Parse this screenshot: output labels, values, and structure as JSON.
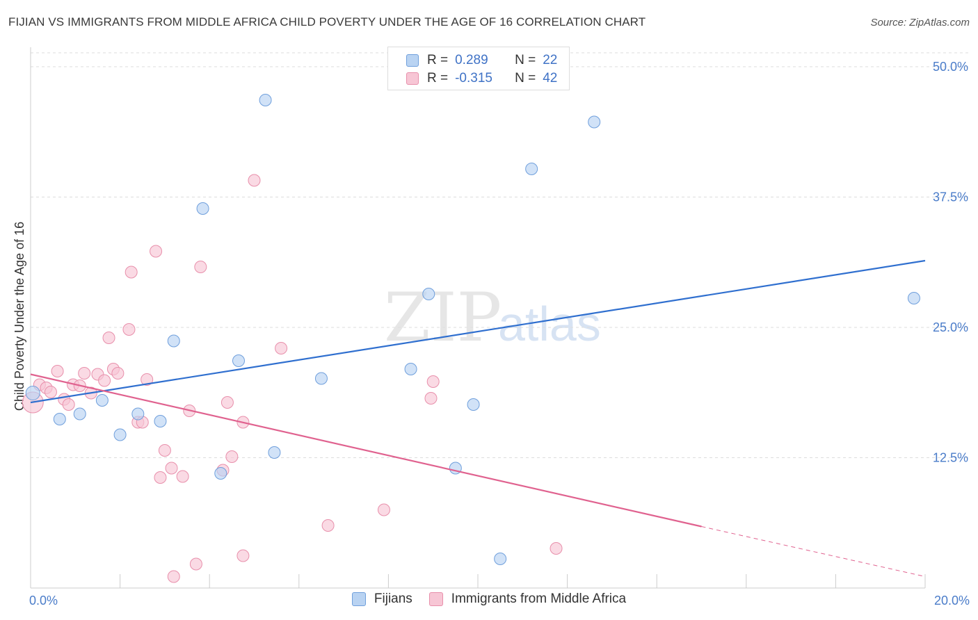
{
  "title": "FIJIAN VS IMMIGRANTS FROM MIDDLE AFRICA CHILD POVERTY UNDER THE AGE OF 16 CORRELATION CHART",
  "source": "Source: ZipAtlas.com",
  "watermark": {
    "zip": "ZIP",
    "atlas": "atlas"
  },
  "colors": {
    "fijians_fill": "#b9d3f2",
    "fijians_stroke": "#6f9fdc",
    "fijians_line": "#2f6fcf",
    "immigrants_fill": "#f7c6d5",
    "immigrants_stroke": "#e88fab",
    "immigrants_line": "#e0628f",
    "axis_text": "#4a7cc9",
    "grid": "#dddddd"
  },
  "legend": {
    "rows": [
      {
        "r_label": "R =",
        "r_value": "0.289",
        "n_label": "N =",
        "n_value": "22"
      },
      {
        "r_label": "R =",
        "r_value": "-0.315",
        "n_label": "N =",
        "n_value": "42"
      }
    ]
  },
  "bottom_legend": {
    "fijians": "Fijians",
    "immigrants": "Immigrants from Middle Africa"
  },
  "chart_data": {
    "type": "scatter",
    "title": "FIJIAN VS IMMIGRANTS FROM MIDDLE AFRICA CHILD POVERTY UNDER THE AGE OF 16 CORRELATION CHART",
    "xlabel": "",
    "ylabel": "Child Poverty Under the Age of 16",
    "xlim": [
      0,
      20
    ],
    "ylim": [
      0,
      52
    ],
    "x_tick_labels": [
      "0.0%",
      "20.0%"
    ],
    "x_tick_values": [
      0,
      20
    ],
    "y_ticks": [
      {
        "value": 12.5,
        "label": "12.5%"
      },
      {
        "value": 25.0,
        "label": "25.0%"
      },
      {
        "value": 37.5,
        "label": "37.5%"
      },
      {
        "value": 50.0,
        "label": "50.0%"
      }
    ],
    "grid": true,
    "series": [
      {
        "name": "Fijians",
        "R": 0.289,
        "N": 22,
        "points": [
          [
            0.05,
            18.7
          ],
          [
            0.65,
            16.2
          ],
          [
            1.1,
            16.7
          ],
          [
            1.6,
            18.0
          ],
          [
            2.0,
            14.7
          ],
          [
            2.4,
            16.7
          ],
          [
            2.9,
            16.0
          ],
          [
            3.2,
            23.7
          ],
          [
            3.85,
            36.4
          ],
          [
            4.25,
            11.0
          ],
          [
            4.65,
            21.8
          ],
          [
            5.25,
            46.8
          ],
          [
            5.45,
            13.0
          ],
          [
            6.5,
            20.1
          ],
          [
            8.5,
            21.0
          ],
          [
            8.9,
            28.2
          ],
          [
            9.5,
            11.5
          ],
          [
            9.9,
            17.6
          ],
          [
            10.5,
            2.8
          ],
          [
            11.2,
            40.2
          ],
          [
            12.6,
            44.7
          ],
          [
            19.75,
            27.8
          ]
        ],
        "trend": {
          "x": [
            0,
            20
          ],
          "y": [
            17.8,
            31.4
          ]
        }
      },
      {
        "name": "Immigrants from Middle Africa",
        "R": -0.315,
        "N": 42,
        "points": [
          [
            0.05,
            17.8
          ],
          [
            0.2,
            19.5
          ],
          [
            0.35,
            19.2
          ],
          [
            0.45,
            18.8
          ],
          [
            0.6,
            20.8
          ],
          [
            0.75,
            18.1
          ],
          [
            0.85,
            17.6
          ],
          [
            0.95,
            19.5
          ],
          [
            1.1,
            19.4
          ],
          [
            1.2,
            20.6
          ],
          [
            1.35,
            18.7
          ],
          [
            1.5,
            20.5
          ],
          [
            1.65,
            19.9
          ],
          [
            1.75,
            24.0
          ],
          [
            1.85,
            21.0
          ],
          [
            1.95,
            20.6
          ],
          [
            2.2,
            24.8
          ],
          [
            2.25,
            30.3
          ],
          [
            2.4,
            15.9
          ],
          [
            2.5,
            15.9
          ],
          [
            2.6,
            20.0
          ],
          [
            2.8,
            32.3
          ],
          [
            2.9,
            10.6
          ],
          [
            3.0,
            13.2
          ],
          [
            3.15,
            11.5
          ],
          [
            3.2,
            1.1
          ],
          [
            3.4,
            10.7
          ],
          [
            3.55,
            17.0
          ],
          [
            3.7,
            2.3
          ],
          [
            3.8,
            30.8
          ],
          [
            4.3,
            11.3
          ],
          [
            4.4,
            17.8
          ],
          [
            4.5,
            12.6
          ],
          [
            4.75,
            3.1
          ],
          [
            4.75,
            15.9
          ],
          [
            5.0,
            39.1
          ],
          [
            5.6,
            23.0
          ],
          [
            6.65,
            6.0
          ],
          [
            7.9,
            7.5
          ],
          [
            8.95,
            18.2
          ],
          [
            9.0,
            19.8
          ],
          [
            11.75,
            3.8
          ]
        ],
        "trend": {
          "x": [
            0,
            15
          ],
          "y": [
            20.5,
            5.9
          ]
        },
        "trend_dashed": {
          "x": [
            15,
            20
          ],
          "y": [
            5.9,
            1.1
          ]
        }
      }
    ]
  }
}
